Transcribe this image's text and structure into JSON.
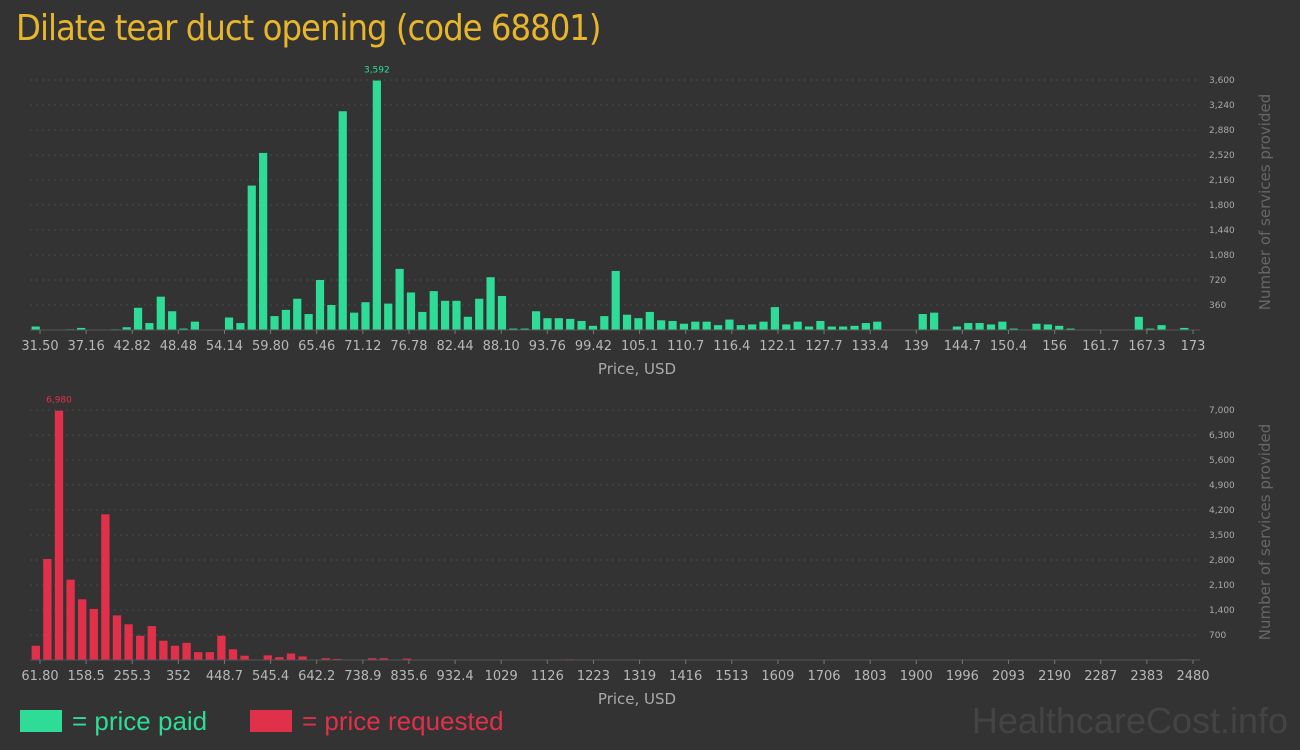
{
  "title": "Dilate tear duct opening (code 68801)",
  "watermark": "HealthcareCost.info",
  "legend": {
    "paid_label": "= price paid",
    "requested_label": "= price requested",
    "paid_color": "#2edc97",
    "requested_color": "#e0304a"
  },
  "chart_data": [
    {
      "type": "bar",
      "name": "price-paid",
      "xlabel": "Price, USD",
      "ylabel": "Number of services provided",
      "ylim": [
        0,
        3600
      ],
      "yticks": [
        360,
        720,
        1080,
        1440,
        1800,
        2160,
        2520,
        2880,
        3240,
        3600
      ],
      "ytick_labels": [
        "360",
        "720",
        "1,080",
        "1,440",
        "1,800",
        "2,160",
        "2,520",
        "2,880",
        "3,240",
        "3,600"
      ],
      "xtick_labels": [
        "31.50",
        "37.16",
        "42.82",
        "48.48",
        "54.14",
        "59.80",
        "65.46",
        "71.12",
        "76.78",
        "82.44",
        "88.10",
        "93.76",
        "99.42",
        "105.1",
        "110.7",
        "116.4",
        "122.1",
        "127.7",
        "133.4",
        "139",
        "144.7",
        "150.4",
        "156",
        "161.7",
        "167.3",
        "173"
      ],
      "peak_label": "3,592",
      "peak_index": 30,
      "color": "#2edc97",
      "values": [
        50,
        0,
        0,
        10,
        30,
        0,
        0,
        10,
        40,
        320,
        100,
        480,
        270,
        20,
        120,
        0,
        0,
        180,
        100,
        2080,
        2550,
        200,
        290,
        450,
        230,
        720,
        360,
        3150,
        250,
        400,
        3592,
        380,
        880,
        540,
        260,
        560,
        420,
        420,
        190,
        450,
        760,
        490,
        20,
        20,
        270,
        170,
        170,
        160,
        130,
        60,
        200,
        850,
        220,
        170,
        260,
        140,
        130,
        90,
        120,
        120,
        70,
        150,
        70,
        80,
        120,
        330,
        80,
        120,
        50,
        130,
        50,
        50,
        60,
        100,
        120,
        0,
        0,
        0,
        230,
        250,
        0,
        50,
        100,
        100,
        80,
        120,
        20,
        0,
        90,
        80,
        60,
        20,
        0,
        0,
        0,
        0,
        0,
        190,
        20,
        70,
        0,
        30
      ]
    },
    {
      "type": "bar",
      "name": "price-requested",
      "xlabel": "Price, USD",
      "ylabel": "Number of services provided",
      "ylim": [
        0,
        7000
      ],
      "yticks": [
        700,
        1400,
        2100,
        2800,
        3500,
        4200,
        4900,
        5600,
        6300,
        7000
      ],
      "ytick_labels": [
        "700",
        "1,400",
        "2,100",
        "2,800",
        "3,500",
        "4,200",
        "4,900",
        "5,600",
        "6,300",
        "7,000"
      ],
      "xtick_labels": [
        "61.80",
        "158.5",
        "255.3",
        "352",
        "448.7",
        "545.4",
        "642.2",
        "738.9",
        "835.6",
        "932.4",
        "1029",
        "1126",
        "1223",
        "1319",
        "1416",
        "1513",
        "1609",
        "1706",
        "1803",
        "1900",
        "1996",
        "2093",
        "2190",
        "2287",
        "2383",
        "2480"
      ],
      "peak_label": "6,980",
      "peak_index": 2,
      "color": "#e0304a",
      "values": [
        400,
        2830,
        6980,
        2250,
        1700,
        1430,
        4080,
        1250,
        1000,
        680,
        950,
        540,
        400,
        480,
        220,
        220,
        680,
        300,
        120,
        0,
        130,
        80,
        180,
        100,
        0,
        50,
        30,
        0,
        0,
        50,
        50,
        0,
        40,
        0,
        0,
        0,
        0,
        0,
        0,
        0,
        0,
        0,
        0,
        0,
        0,
        0,
        20,
        0,
        0,
        0,
        0,
        0,
        0,
        0,
        0,
        0,
        0,
        0,
        0,
        0,
        0,
        0,
        0,
        0,
        0,
        0,
        0,
        0,
        0,
        0,
        0,
        0,
        0,
        0,
        0,
        0,
        0,
        0,
        0,
        0,
        0,
        0,
        0,
        0,
        0,
        0,
        0,
        0,
        0,
        0,
        0,
        0,
        0,
        0,
        0,
        0,
        0,
        0,
        0,
        20
      ]
    }
  ]
}
